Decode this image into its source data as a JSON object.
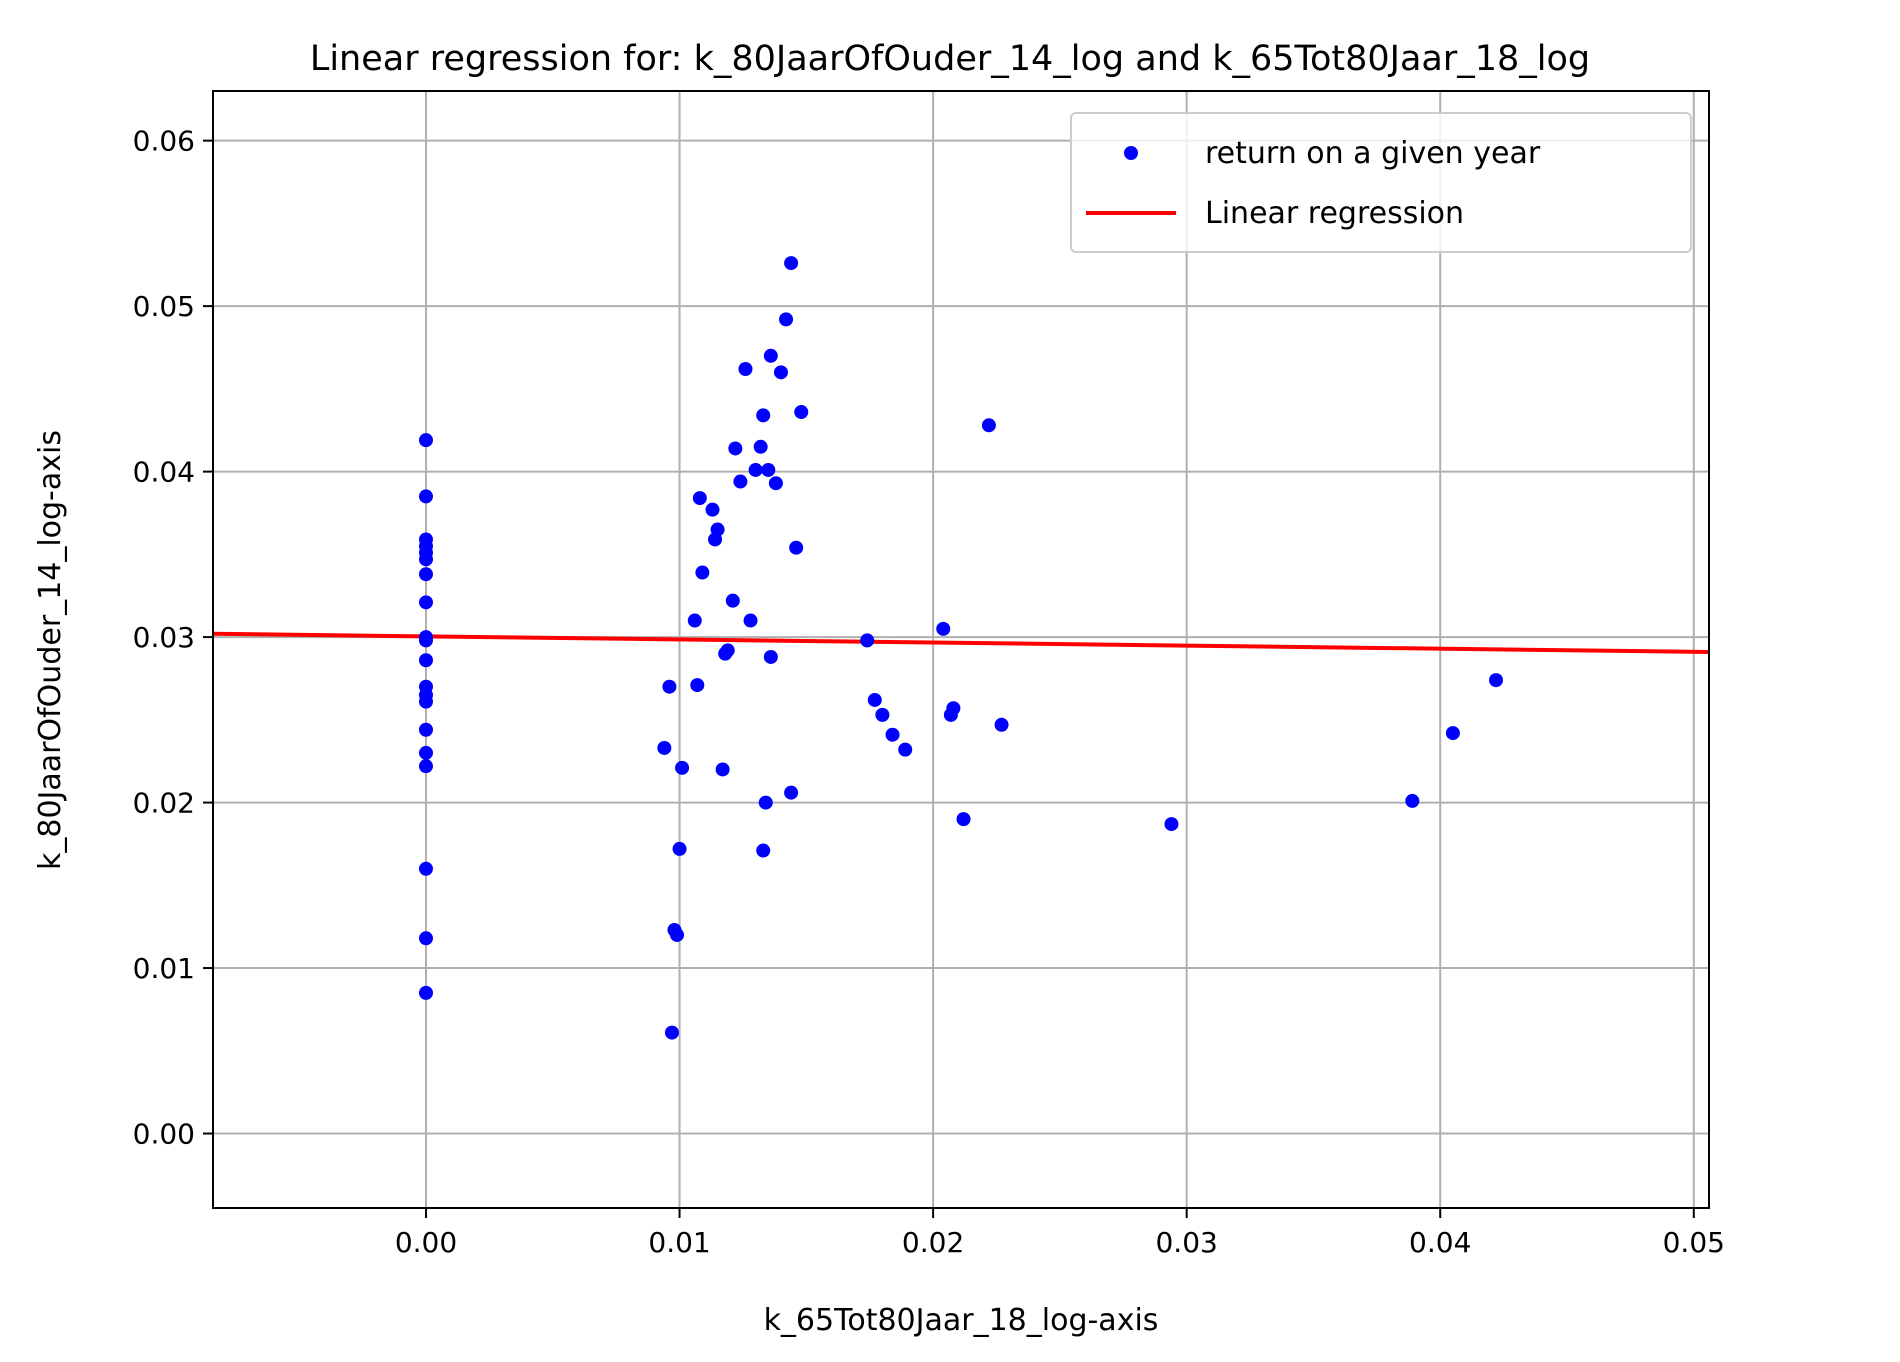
{
  "chart_data": {
    "type": "scatter",
    "title": "Linear regression for: k_80JaarOfOuder_14_log and k_65Tot80Jaar_18_log",
    "xlabel": "k_65Tot80Jaar_18_log-axis",
    "ylabel": "k_80JaarOfOuder_14_log-axis",
    "xlim": [
      -0.0084,
      0.0506
    ],
    "ylim": [
      -0.0045,
      0.063
    ],
    "x_ticks": [
      0.0,
      0.01,
      0.02,
      0.03,
      0.04,
      0.05
    ],
    "x_tick_labels": [
      "0.00",
      "0.01",
      "0.02",
      "0.03",
      "0.04",
      "0.05"
    ],
    "y_ticks": [
      0.0,
      0.01,
      0.02,
      0.03,
      0.04,
      0.05,
      0.06
    ],
    "y_tick_labels": [
      "0.00",
      "0.01",
      "0.02",
      "0.03",
      "0.04",
      "0.05",
      "0.06"
    ],
    "grid": true,
    "legend_position": "upper right",
    "legend": [
      {
        "label": "return on a given year",
        "kind": "marker",
        "color": "#0000ff"
      },
      {
        "label": "Linear regression",
        "kind": "line",
        "color": "#ff0000"
      }
    ],
    "series": [
      {
        "name": "return on a given year",
        "kind": "scatter",
        "color": "#0000ff",
        "points": [
          [
            0.0,
            0.0419
          ],
          [
            0.0,
            0.0385
          ],
          [
            0.0,
            0.0359
          ],
          [
            0.0,
            0.0355
          ],
          [
            0.0,
            0.0351
          ],
          [
            0.0,
            0.0347
          ],
          [
            0.0,
            0.0338
          ],
          [
            0.0,
            0.0321
          ],
          [
            0.0,
            0.03
          ],
          [
            0.0,
            0.0298
          ],
          [
            0.0,
            0.0286
          ],
          [
            0.0,
            0.027
          ],
          [
            0.0,
            0.0265
          ],
          [
            0.0,
            0.0261
          ],
          [
            0.0,
            0.0244
          ],
          [
            0.0,
            0.023
          ],
          [
            0.0,
            0.0222
          ],
          [
            0.0,
            0.016
          ],
          [
            0.0,
            0.0118
          ],
          [
            0.0,
            0.0085
          ],
          [
            0.0094,
            0.0233
          ],
          [
            0.0096,
            0.027
          ],
          [
            0.0097,
            0.0061
          ],
          [
            0.0098,
            0.0123
          ],
          [
            0.0099,
            0.012
          ],
          [
            0.01,
            0.0172
          ],
          [
            0.0101,
            0.0221
          ],
          [
            0.0106,
            0.031
          ],
          [
            0.0107,
            0.0271
          ],
          [
            0.0108,
            0.0384
          ],
          [
            0.0109,
            0.0339
          ],
          [
            0.0113,
            0.0377
          ],
          [
            0.0114,
            0.0359
          ],
          [
            0.0115,
            0.0365
          ],
          [
            0.0117,
            0.022
          ],
          [
            0.0118,
            0.029
          ],
          [
            0.0119,
            0.0292
          ],
          [
            0.0121,
            0.0322
          ],
          [
            0.0122,
            0.0414
          ],
          [
            0.0124,
            0.0394
          ],
          [
            0.0126,
            0.0462
          ],
          [
            0.0128,
            0.031
          ],
          [
            0.013,
            0.0401
          ],
          [
            0.0132,
            0.0415
          ],
          [
            0.0133,
            0.0434
          ],
          [
            0.0133,
            0.0171
          ],
          [
            0.0134,
            0.02
          ],
          [
            0.0135,
            0.0401
          ],
          [
            0.0136,
            0.047
          ],
          [
            0.0136,
            0.0288
          ],
          [
            0.0138,
            0.0393
          ],
          [
            0.014,
            0.046
          ],
          [
            0.0142,
            0.0492
          ],
          [
            0.0144,
            0.0526
          ],
          [
            0.0144,
            0.0206
          ],
          [
            0.0146,
            0.0354
          ],
          [
            0.0148,
            0.0436
          ],
          [
            0.0174,
            0.0298
          ],
          [
            0.0177,
            0.0262
          ],
          [
            0.018,
            0.0253
          ],
          [
            0.0184,
            0.0241
          ],
          [
            0.0189,
            0.0232
          ],
          [
            0.0204,
            0.0305
          ],
          [
            0.0207,
            0.0253
          ],
          [
            0.0208,
            0.0257
          ],
          [
            0.0212,
            0.019
          ],
          [
            0.0222,
            0.0428
          ],
          [
            0.0227,
            0.0247
          ],
          [
            0.0294,
            0.0187
          ],
          [
            0.0389,
            0.0201
          ],
          [
            0.0405,
            0.0242
          ],
          [
            0.0422,
            0.0274
          ]
        ]
      },
      {
        "name": "Linear regression",
        "kind": "line",
        "color": "#ff0000",
        "points": [
          [
            -0.0084,
            0.0302
          ],
          [
            0.0506,
            0.0291
          ]
        ]
      }
    ]
  }
}
